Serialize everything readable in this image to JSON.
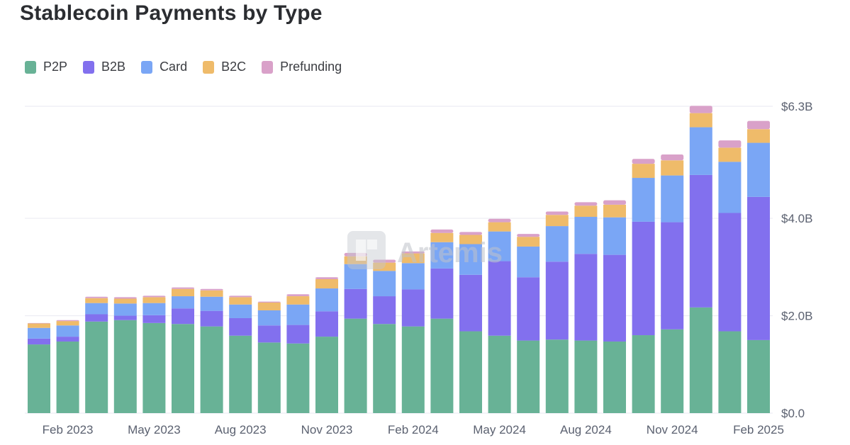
{
  "chart_data": {
    "type": "bar",
    "stacked": true,
    "title": "Stablecoin Payments by Type",
    "xlabel": "",
    "ylabel": "",
    "ylim": [
      0,
      6.3
    ],
    "y_unit": "$B",
    "yticks": [
      0,
      2.0,
      4.0,
      6.3
    ],
    "ytick_labels": [
      "$0.0",
      "$2.0B",
      "$4.0B",
      "$6.3B"
    ],
    "xtick_labels": [
      {
        "index": 1,
        "label": "Feb 2023"
      },
      {
        "index": 4,
        "label": "May 2023"
      },
      {
        "index": 7,
        "label": "Aug 2023"
      },
      {
        "index": 10,
        "label": "Nov 2023"
      },
      {
        "index": 13,
        "label": "Feb 2024"
      },
      {
        "index": 16,
        "label": "May 2024"
      },
      {
        "index": 19,
        "label": "Aug 2024"
      },
      {
        "index": 22,
        "label": "Nov 2024"
      },
      {
        "index": 25,
        "label": "Feb 2025"
      }
    ],
    "categories": [
      "Jan 2023",
      "Feb 2023",
      "Mar 2023",
      "Apr 2023",
      "May 2023",
      "Jun 2023",
      "Jul 2023",
      "Aug 2023",
      "Sep 2023",
      "Oct 2023",
      "Nov 2023",
      "Dec 2023",
      "Jan 2024",
      "Feb 2024",
      "Mar 2024",
      "Apr 2024",
      "May 2024",
      "Jun 2024",
      "Jul 2024",
      "Aug 2024",
      "Sep 2024",
      "Oct 2024",
      "Nov 2024",
      "Dec 2024",
      "Jan 2025",
      "Feb 2025"
    ],
    "series": [
      {
        "name": "P2P",
        "color": "#68b296",
        "values": [
          1.41,
          1.47,
          1.88,
          1.91,
          1.85,
          1.83,
          1.78,
          1.59,
          1.45,
          1.43,
          1.57,
          1.94,
          1.83,
          1.78,
          1.94,
          1.68,
          1.59,
          1.49,
          1.51,
          1.49,
          1.47,
          1.6,
          1.72,
          2.17,
          1.68,
          1.5
        ]
      },
      {
        "name": "B2B",
        "color": "#8270ee",
        "values": [
          0.12,
          0.1,
          0.15,
          0.09,
          0.16,
          0.32,
          0.32,
          0.36,
          0.35,
          0.38,
          0.52,
          0.61,
          0.57,
          0.76,
          1.03,
          1.16,
          1.53,
          1.3,
          1.6,
          1.78,
          1.78,
          2.33,
          2.2,
          2.72,
          2.43,
          2.94
        ]
      },
      {
        "name": "Card",
        "color": "#7aa6f5",
        "values": [
          0.22,
          0.23,
          0.23,
          0.25,
          0.25,
          0.25,
          0.29,
          0.28,
          0.31,
          0.42,
          0.47,
          0.51,
          0.52,
          0.54,
          0.54,
          0.63,
          0.61,
          0.63,
          0.73,
          0.76,
          0.77,
          0.9,
          0.96,
          0.98,
          1.05,
          1.11
        ]
      },
      {
        "name": "B2C",
        "color": "#efbb6a",
        "values": [
          0.09,
          0.09,
          0.1,
          0.1,
          0.12,
          0.15,
          0.13,
          0.15,
          0.16,
          0.17,
          0.19,
          0.16,
          0.17,
          0.2,
          0.19,
          0.19,
          0.19,
          0.2,
          0.23,
          0.23,
          0.26,
          0.29,
          0.31,
          0.29,
          0.29,
          0.28
        ]
      },
      {
        "name": "Prefunding",
        "color": "#d9a1c9",
        "values": [
          0.01,
          0.02,
          0.03,
          0.03,
          0.03,
          0.03,
          0.03,
          0.03,
          0.02,
          0.04,
          0.04,
          0.07,
          0.06,
          0.04,
          0.07,
          0.06,
          0.07,
          0.06,
          0.07,
          0.07,
          0.09,
          0.1,
          0.12,
          0.15,
          0.15,
          0.17
        ]
      }
    ],
    "legend": "top-left",
    "grid": true,
    "watermark": "Artemis"
  }
}
